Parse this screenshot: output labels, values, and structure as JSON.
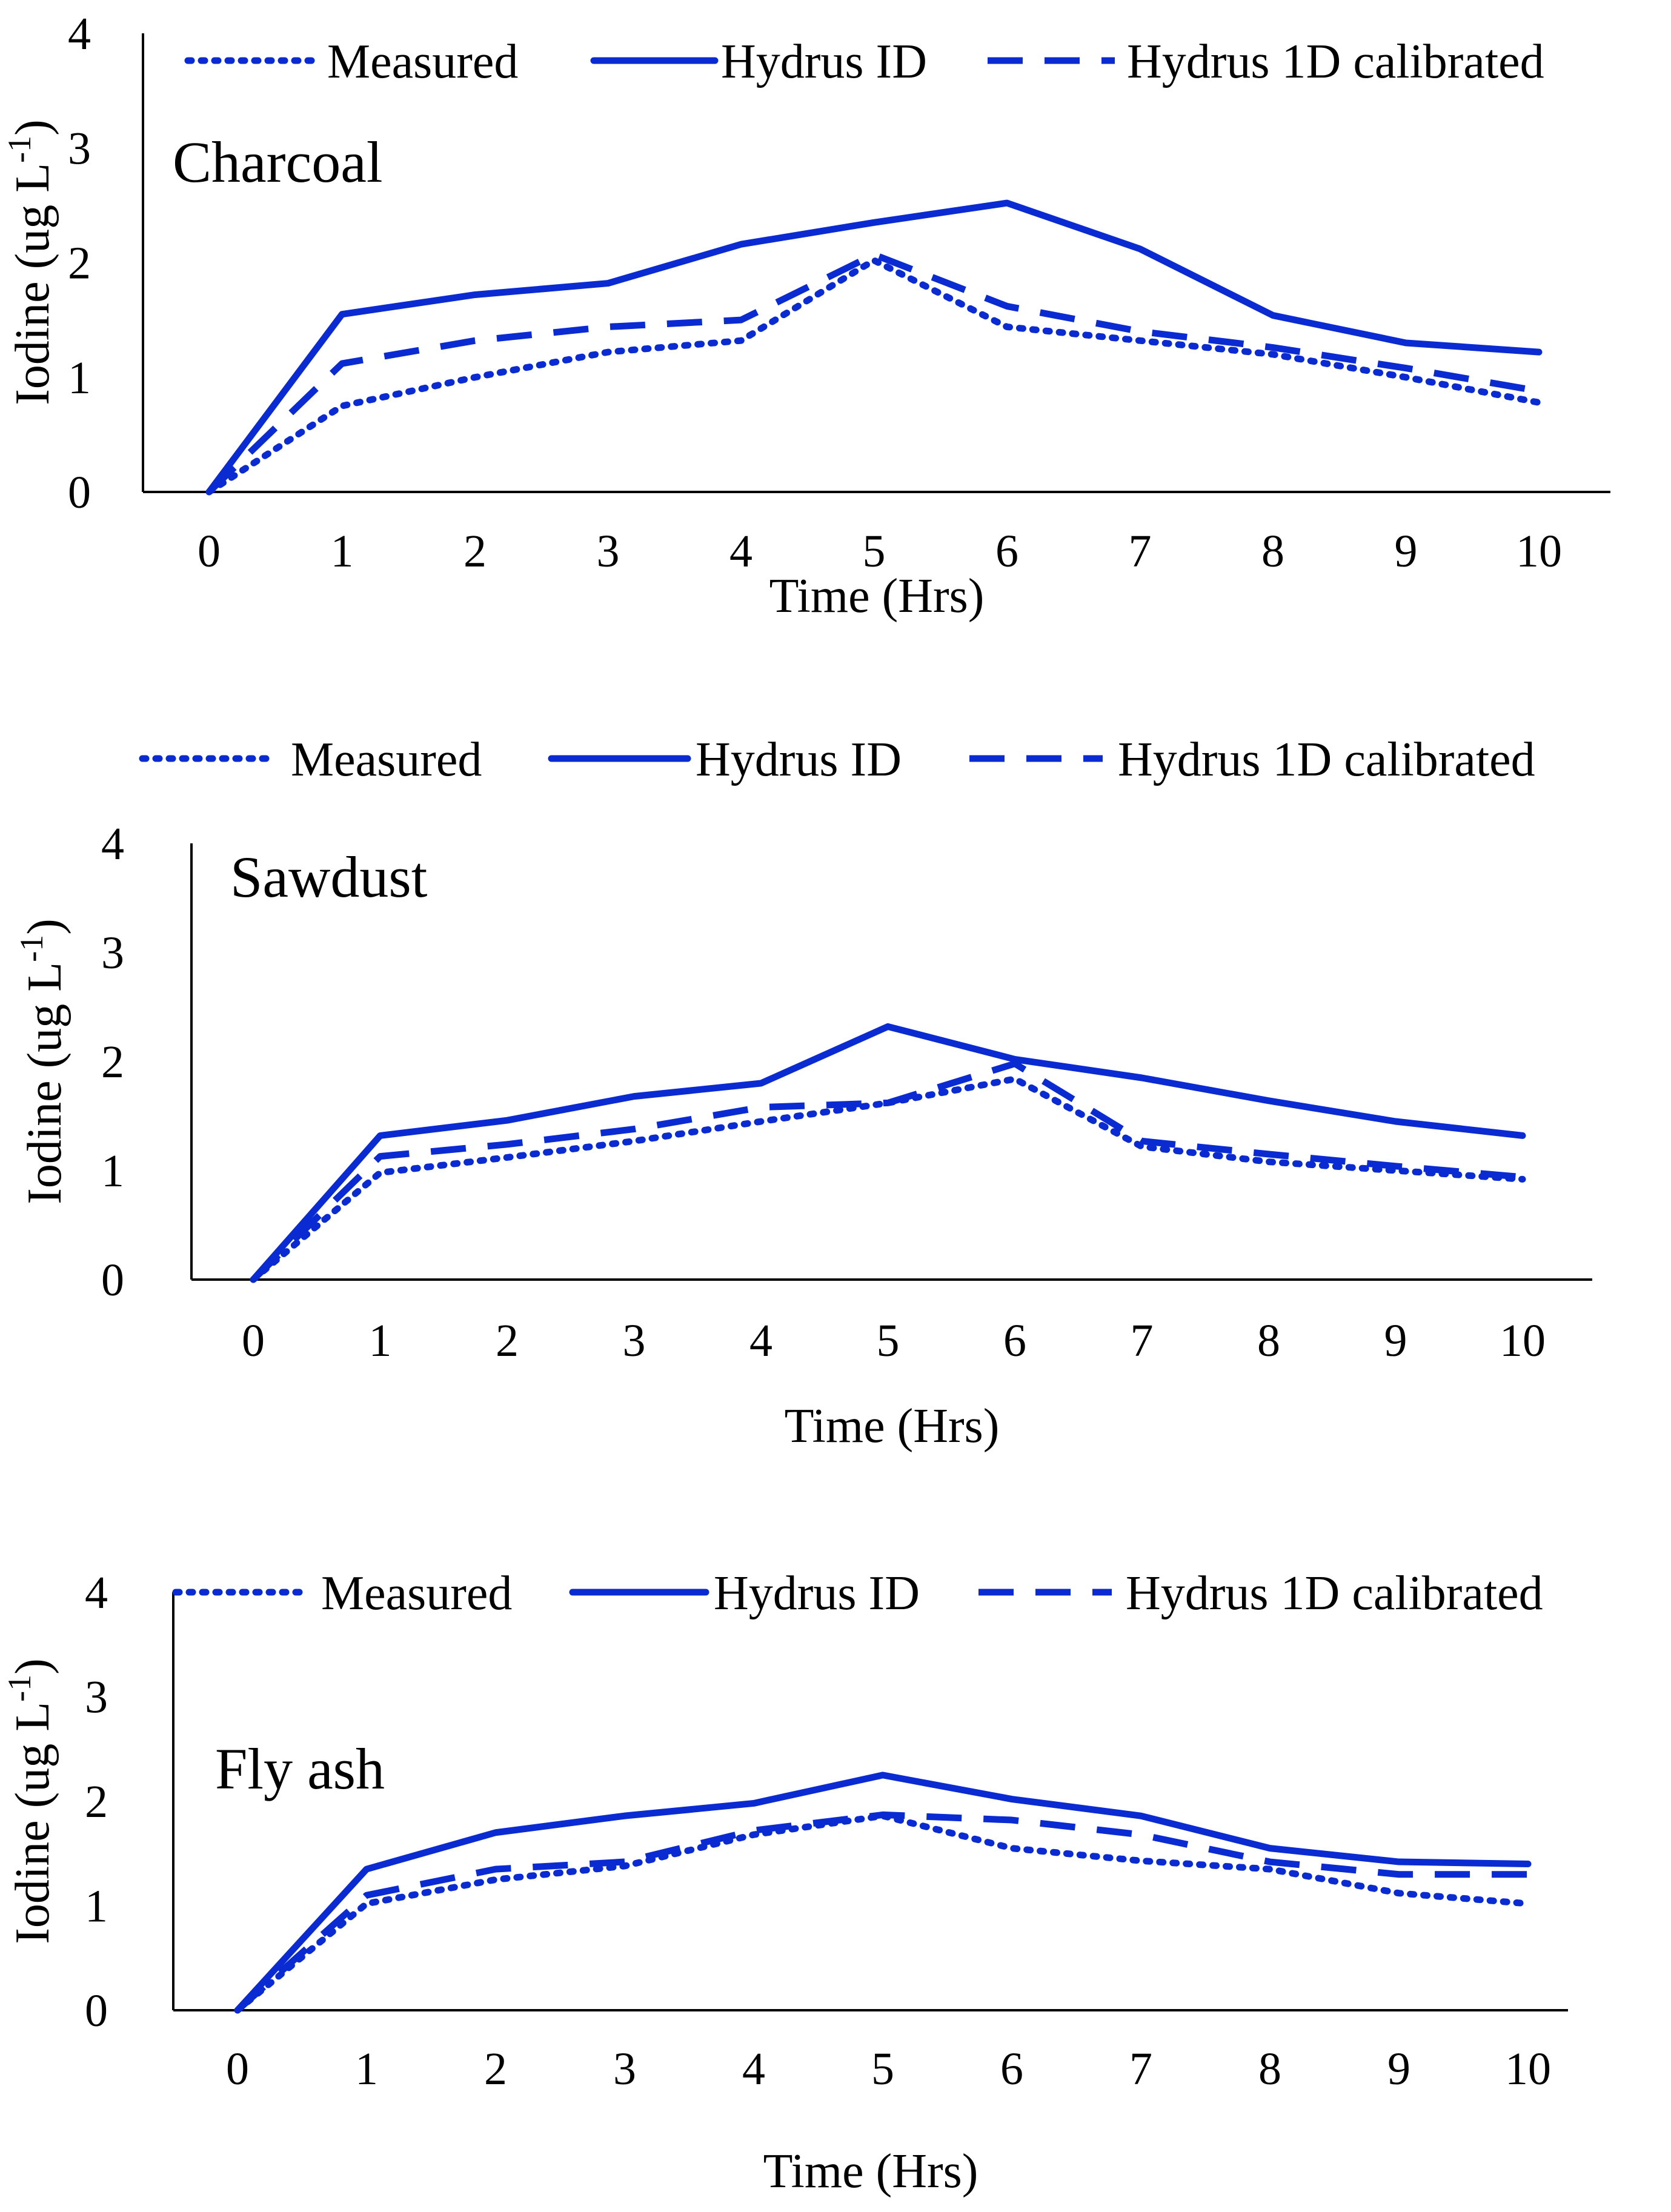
{
  "colors": {
    "series": "#0a2bd1",
    "axis": "#000000",
    "background": "#ffffff"
  },
  "chart_data": [
    {
      "type": "line",
      "title": "Charcoal",
      "xlabel": "Time (Hrs)",
      "ylabel": "Iodine (ug L",
      "ylabel_sup": "-1",
      "ylabel_close": ")",
      "x": [
        0,
        1,
        2,
        3,
        4,
        5,
        6,
        7,
        8,
        9,
        10
      ],
      "xticks": [
        "0",
        "1",
        "2",
        "3",
        "4",
        "5",
        "6",
        "7",
        "8",
        "9",
        "10"
      ],
      "yticks": [
        "0",
        "1",
        "2",
        "3",
        "4"
      ],
      "ylim": [
        0,
        4
      ],
      "legend_position": "top",
      "series": [
        {
          "name": "Measured",
          "style": "dotted",
          "values": [
            0,
            0.75,
            1.0,
            1.22,
            1.32,
            2.02,
            1.44,
            1.32,
            1.2,
            1.0,
            0.78
          ]
        },
        {
          "name": "Hydrus ID",
          "style": "solid",
          "values": [
            0,
            1.55,
            1.72,
            1.82,
            2.16,
            2.35,
            2.52,
            2.12,
            1.54,
            1.3,
            1.22
          ]
        },
        {
          "name": "Hydrus 1D calibrated",
          "style": "dashed",
          "values": [
            0,
            1.12,
            1.32,
            1.44,
            1.5,
            2.07,
            1.62,
            1.4,
            1.26,
            1.08,
            0.88
          ]
        }
      ]
    },
    {
      "type": "line",
      "title": "Sawdust",
      "xlabel": "Time (Hrs)",
      "ylabel": "Iodine (ug L",
      "ylabel_sup": "-1",
      "ylabel_close": ")",
      "x": [
        0,
        1,
        2,
        3,
        4,
        5,
        6,
        7,
        8,
        9,
        10
      ],
      "xticks": [
        "0",
        "1",
        "2",
        "3",
        "4",
        "5",
        "6",
        "7",
        "8",
        "9",
        "10"
      ],
      "yticks": [
        "0",
        "1",
        "2",
        "3",
        "4"
      ],
      "ylim": [
        0,
        4
      ],
      "legend_position": "top",
      "series": [
        {
          "name": "Measured",
          "style": "dotted",
          "values": [
            0,
            0.98,
            1.12,
            1.27,
            1.45,
            1.62,
            1.84,
            1.22,
            1.08,
            1.0,
            0.92
          ]
        },
        {
          "name": "Hydrus ID",
          "style": "solid",
          "values": [
            0,
            1.32,
            1.46,
            1.68,
            1.8,
            2.32,
            2.02,
            1.85,
            1.64,
            1.45,
            1.32
          ]
        },
        {
          "name": "Hydrus 1D calibrated",
          "style": "dashed",
          "values": [
            0,
            1.13,
            1.24,
            1.38,
            1.58,
            1.62,
            1.98,
            1.27,
            1.15,
            1.04,
            0.94
          ]
        }
      ]
    },
    {
      "type": "line",
      "title": "Fly ash",
      "xlabel": "Time (Hrs)",
      "ylabel": "Iodine (ug L",
      "ylabel_sup": "-1",
      "ylabel_close": ")",
      "x": [
        0,
        1,
        2,
        3,
        4,
        5,
        6,
        7,
        8,
        9,
        10
      ],
      "xticks": [
        "0",
        "1",
        "2",
        "3",
        "4",
        "5",
        "6",
        "7",
        "8",
        "9",
        "10"
      ],
      "yticks": [
        "0",
        "1",
        "2",
        "3",
        "4"
      ],
      "ylim": [
        0,
        4
      ],
      "legend_position": "top",
      "series": [
        {
          "name": "Measured",
          "style": "dotted",
          "values": [
            0,
            1.02,
            1.25,
            1.38,
            1.68,
            1.86,
            1.55,
            1.43,
            1.35,
            1.12,
            1.02
          ]
        },
        {
          "name": "Hydrus ID",
          "style": "solid",
          "values": [
            0,
            1.35,
            1.7,
            1.86,
            1.98,
            2.25,
            2.02,
            1.86,
            1.55,
            1.42,
            1.4
          ]
        },
        {
          "name": "Hydrus 1D calibrated",
          "style": "dashed",
          "values": [
            0,
            1.1,
            1.35,
            1.42,
            1.72,
            1.87,
            1.82,
            1.68,
            1.42,
            1.3,
            1.3
          ]
        }
      ]
    }
  ]
}
